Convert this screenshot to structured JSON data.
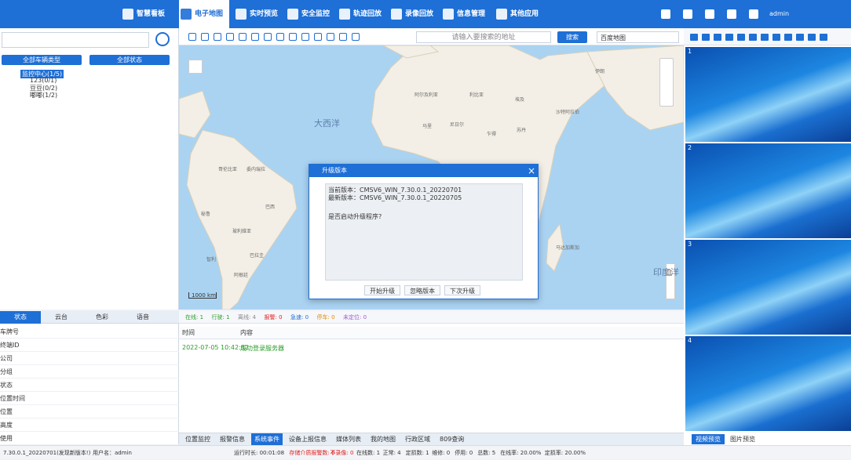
{
  "topbar": {
    "menu": [
      "智慧看板",
      "电子地图",
      "实时预览",
      "安全监控",
      "轨迹回放",
      "录像回放",
      "信息管理",
      "其他应用"
    ],
    "user": "admin"
  },
  "left": {
    "filters": [
      "全部车辆类型",
      "全部状态"
    ],
    "tree": [
      "监控中心(1/5)",
      "123(0/1)",
      "豆豆(0/2)",
      "嘟嘟(1/2)"
    ]
  },
  "detail": {
    "tabs": [
      "状态",
      "云台",
      "色彩",
      "语音"
    ],
    "fields": [
      "车牌号",
      "终端ID",
      "公司",
      "分组",
      "状态",
      "位置时间",
      "位置",
      "高度",
      "使用"
    ]
  },
  "map": {
    "search_placeholder": "请输入要搜索的地址",
    "search_button": "搜索",
    "map_type": "百度地图",
    "labels": [
      "大西洋",
      "印度洋",
      "阿尔及利亚",
      "利比亚",
      "埃及",
      "马里",
      "尼日尔",
      "乍得",
      "苏丹",
      "沙特阿拉伯",
      "伊朗",
      "巴西",
      "秘鲁",
      "玻利维亚",
      "巴拉圭",
      "智利",
      "阿根廷",
      "委内瑞拉",
      "哥伦比亚",
      "马达加斯加"
    ],
    "scale": "1000 km",
    "zoom_level": "4"
  },
  "dialog": {
    "title": "升级版本",
    "lines": [
      "当前版本：CMSV6_WIN_7.30.0.1_20220701",
      "最新版本：CMSV6_WIN_7.30.0.1_20220705",
      "是否启动升级程序?"
    ],
    "buttons": [
      "开始升级",
      "忽略版本",
      "下次升级"
    ]
  },
  "status": {
    "items": [
      "在线: 1",
      "行驶: 1",
      "离线: 4",
      "报警: 0",
      "急速: 0",
      "停车: 0",
      "未定位: 0"
    ]
  },
  "events": {
    "columns": [
      "时间",
      "内容"
    ],
    "rows": [
      [
        "2022-07-05 10:42:52",
        "成功登录服务器"
      ]
    ]
  },
  "bottom_tabs": [
    "位置监控",
    "报警信息",
    "系统事件",
    "设备上报信息",
    "媒体列表",
    "我的地图",
    "行政区域",
    "809查询"
  ],
  "video": {
    "panes": [
      "1",
      "2",
      "3",
      "4"
    ],
    "tabs": [
      "视频预览",
      "图片预览"
    ]
  },
  "footer": {
    "version": "7.30.0.1_20220701(发现新版本!)",
    "user": "用户名：admin",
    "stats": [
      "运行时长: 00:01:08",
      "存储介质报警数: 0",
      "不录像: 0",
      "在线数: 1",
      "正常: 4",
      "定损数: 1",
      "维修: 0",
      "停用: 0",
      "总数: 5",
      "在线率: 20.00%",
      "定损率: 20.00%"
    ]
  }
}
